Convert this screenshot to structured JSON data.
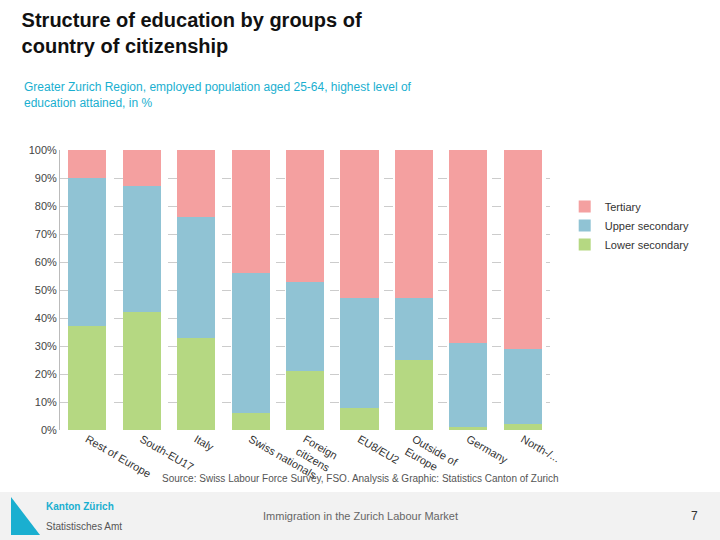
{
  "chart_data": {
    "type": "bar",
    "stacked": true,
    "title": "Structure of education by groups of\ncountry of citizenship",
    "subtitle": "Greater Zurich Region, employed population aged 25-64, highest level of\neducation attained, in %",
    "categories": [
      "Rest of Europe",
      "South-EU17",
      "Italy",
      "Swiss nationals",
      "Foreign\ncitizens",
      "EU8/EU2",
      "Outside of\nEurope",
      "Germany",
      "North-/..."
    ],
    "series": [
      {
        "name": "Lower secondary",
        "color": "#b5d882",
        "values": [
          37,
          42,
          33,
          6,
          21,
          8,
          25,
          1,
          2
        ]
      },
      {
        "name": "Upper secondary",
        "color": "#90c3d4",
        "values": [
          53,
          45,
          43,
          50,
          32,
          39,
          22,
          30,
          27
        ]
      },
      {
        "name": "Tertiary",
        "color": "#f4a0a0",
        "values": [
          10,
          13,
          24,
          44,
          47,
          53,
          53,
          69,
          71
        ]
      }
    ],
    "ylim": [
      0,
      100
    ],
    "yticks": [
      {
        "value": 0,
        "label": "0%"
      },
      {
        "value": 10,
        "label": "10%"
      },
      {
        "value": 20,
        "label": "20%"
      },
      {
        "value": 30,
        "label": "30%"
      },
      {
        "value": 40,
        "label": "40%"
      },
      {
        "value": 50,
        "label": "50%"
      },
      {
        "value": 60,
        "label": "60%"
      },
      {
        "value": 70,
        "label": "70%"
      },
      {
        "value": 80,
        "label": "80%"
      },
      {
        "value": 90,
        "label": "90%"
      },
      {
        "value": 100,
        "label": "100%"
      }
    ],
    "grid": true,
    "legend": "right",
    "annotations": [
      "Source: Swiss Labour Force Survey, FSO. Analysis & Graphic: Statistics Canton of Zurich",
      "Kanton Zürich",
      "Statistisches Amt",
      "Immigration in the Zurich Labour Market",
      "7"
    ]
  }
}
